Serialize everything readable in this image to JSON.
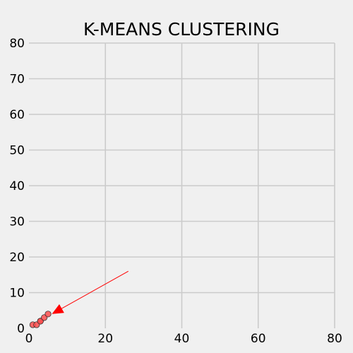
{
  "chart_data": {
    "type": "scatter",
    "title": "K-MEANS CLUSTERING",
    "xlabel": "",
    "ylabel": "",
    "xlim": [
      0,
      80
    ],
    "ylim": [
      0,
      80
    ],
    "x_ticks": [
      "0",
      "20",
      "40",
      "60",
      "80"
    ],
    "y_ticks": [
      "0",
      "10",
      "20",
      "30",
      "40",
      "50",
      "60",
      "70",
      "80"
    ],
    "grid": true,
    "background_color": "#f0f0f0",
    "grid_color": "#cbcbcb",
    "series": [
      {
        "color": "#ff4d4d",
        "edge_color": "#333333",
        "x": [
          1,
          2,
          3,
          3,
          4,
          5
        ],
        "y": [
          1,
          1,
          2,
          2,
          3,
          4
        ]
      }
    ],
    "annotations": [
      {
        "type": "arrow",
        "color": "#ff0000",
        "from": [
          26,
          16
        ],
        "to": [
          6,
          4
        ]
      }
    ]
  }
}
